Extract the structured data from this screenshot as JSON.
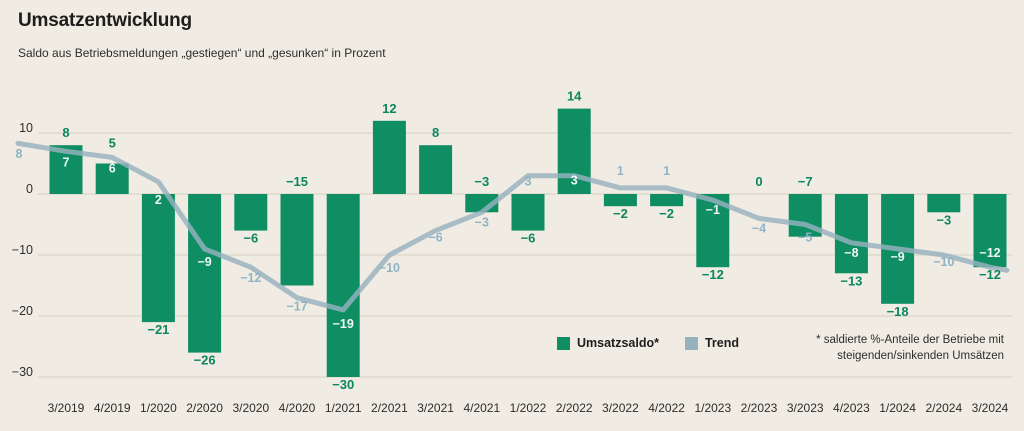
{
  "header": {
    "title": "Umsatzentwicklung",
    "subtitle": "Saldo aus Betriebsmeldungen „gestiegen“ und „gesunken“ in Prozent"
  },
  "legend": {
    "saldo_label": "Umsatzsaldo*",
    "trend_label": "Trend"
  },
  "footnote": {
    "line1": "* saldierte %-Anteile der Betriebe mit",
    "line2": "steigenden/sinkenden Umsätzen"
  },
  "colors": {
    "background": "#F0ECE3",
    "bar_green": "#0F8E64",
    "bar_label_green": "#0C875D",
    "trend_blue": "#96B1BE",
    "trend_label_blue": "#8FB4C6",
    "inside_label_white": "#FFFFFF",
    "grid": "#DBD5C8",
    "text_dark": "#1D1D1B",
    "axis_text": "#2D2D2B"
  },
  "chart_data": {
    "type": "bar",
    "title": "Umsatzentwicklung",
    "subtitle": "Saldo aus Betriebsmeldungen „gestiegen“ und „gesunken“ in Prozent",
    "categories": [
      "3/2019",
      "4/2019",
      "1/2020",
      "2/2020",
      "3/2020",
      "4/2020",
      "1/2021",
      "2/2021",
      "3/2021",
      "4/2021",
      "1/2022",
      "2/2022",
      "3/2022",
      "4/2022",
      "1/2023",
      "2/2023",
      "3/2023",
      "4/2023",
      "1/2024",
      "2/2024",
      "3/2024"
    ],
    "series": [
      {
        "name": "Umsatzsaldo",
        "type": "bar",
        "values": [
          8,
          5,
          -21,
          -26,
          -6,
          -15,
          -30,
          12,
          8,
          -3,
          -6,
          14,
          -2,
          -2,
          -12,
          0,
          -7,
          -13,
          -18,
          -3,
          -12
        ],
        "label_overrides": {
          "1": "raised",
          "5": "axis",
          "9": "axis",
          "15": "axis",
          "16": "axis"
        }
      },
      {
        "name": "Trend",
        "type": "line",
        "values": [
          7,
          6,
          2,
          -9,
          -12,
          -17,
          -19,
          -10,
          -6,
          -3,
          3,
          3,
          1,
          1,
          -1,
          -4,
          -5,
          -8,
          -9,
          -10,
          -12
        ],
        "lead_in": {
          "value": 8.3,
          "label": "8"
        },
        "tail_out": {
          "value": -12.5
        },
        "label_styles": [
          "in",
          "in",
          "in",
          "in",
          "out",
          "out",
          "in",
          "out",
          "out",
          "out",
          "out",
          "in",
          "out",
          "out",
          "in",
          "out",
          "out",
          "in",
          "in",
          "out",
          "in"
        ],
        "label_dy": [
          11,
          11,
          18,
          13,
          11,
          9,
          14,
          13,
          7,
          10,
          6,
          5,
          -17,
          -17,
          10,
          10,
          13,
          10,
          8,
          7,
          -14
        ]
      }
    ],
    "yticks": [
      10,
      0,
      -10,
      -20,
      -30
    ],
    "ylim": [
      -33,
      15
    ],
    "grid": true,
    "legend_position": "inside-bottom",
    "legend_entries": [
      "Umsatzsaldo*",
      "Trend"
    ]
  }
}
